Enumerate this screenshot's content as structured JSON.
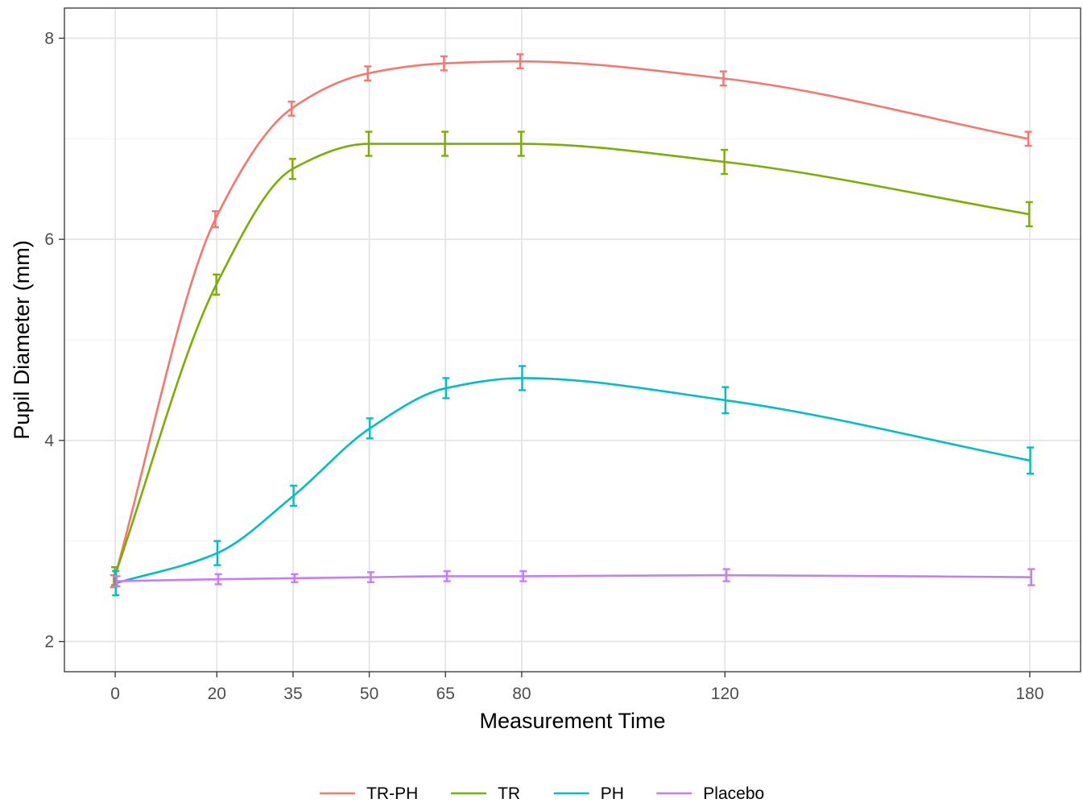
{
  "chart_data": {
    "type": "line",
    "title": "",
    "xlabel": "Measurement Time",
    "ylabel": "Pupil Diameter (mm)",
    "x_ticks": [
      0,
      20,
      35,
      50,
      65,
      80,
      120,
      180
    ],
    "y_ticks": [
      2,
      4,
      6,
      8
    ],
    "xlim": [
      -10,
      190
    ],
    "ylim": [
      1.7,
      8.3
    ],
    "grid": true,
    "legend_position": "bottom",
    "series": [
      {
        "name": "TR-PH",
        "color": "#F8766D",
        "x": [
          -0.3,
          19.7,
          34.7,
          49.7,
          64.7,
          79.7,
          119.7,
          179.7
        ],
        "y": [
          2.6,
          6.2,
          7.3,
          7.65,
          7.75,
          7.77,
          7.6,
          7.0
        ],
        "error": [
          0.06,
          0.08,
          0.07,
          0.07,
          0.07,
          0.07,
          0.07,
          0.07
        ]
      },
      {
        "name": "TR",
        "color": "#7CAE00",
        "x": [
          -0.1,
          19.9,
          34.9,
          49.9,
          64.9,
          79.9,
          119.9,
          179.9
        ],
        "y": [
          2.65,
          5.55,
          6.7,
          6.95,
          6.95,
          6.95,
          6.77,
          6.25
        ],
        "error": [
          0.09,
          0.1,
          0.1,
          0.12,
          0.12,
          0.12,
          0.12,
          0.12
        ]
      },
      {
        "name": "PH",
        "color": "#00BFC4",
        "x": [
          0.1,
          20.1,
          35.1,
          50.1,
          65.1,
          80.1,
          120.1,
          180.1
        ],
        "y": [
          2.58,
          2.88,
          3.45,
          4.12,
          4.52,
          4.62,
          4.4,
          3.8
        ],
        "error": [
          0.12,
          0.12,
          0.1,
          0.1,
          0.1,
          0.12,
          0.13,
          0.13
        ]
      },
      {
        "name": "Placebo",
        "color": "#C77CFF",
        "x": [
          0.3,
          20.3,
          35.3,
          50.3,
          65.3,
          80.3,
          120.3,
          180.3
        ],
        "y": [
          2.6,
          2.62,
          2.63,
          2.64,
          2.65,
          2.65,
          2.66,
          2.64
        ],
        "error": [
          0.05,
          0.05,
          0.04,
          0.05,
          0.05,
          0.05,
          0.06,
          0.08
        ]
      }
    ]
  }
}
